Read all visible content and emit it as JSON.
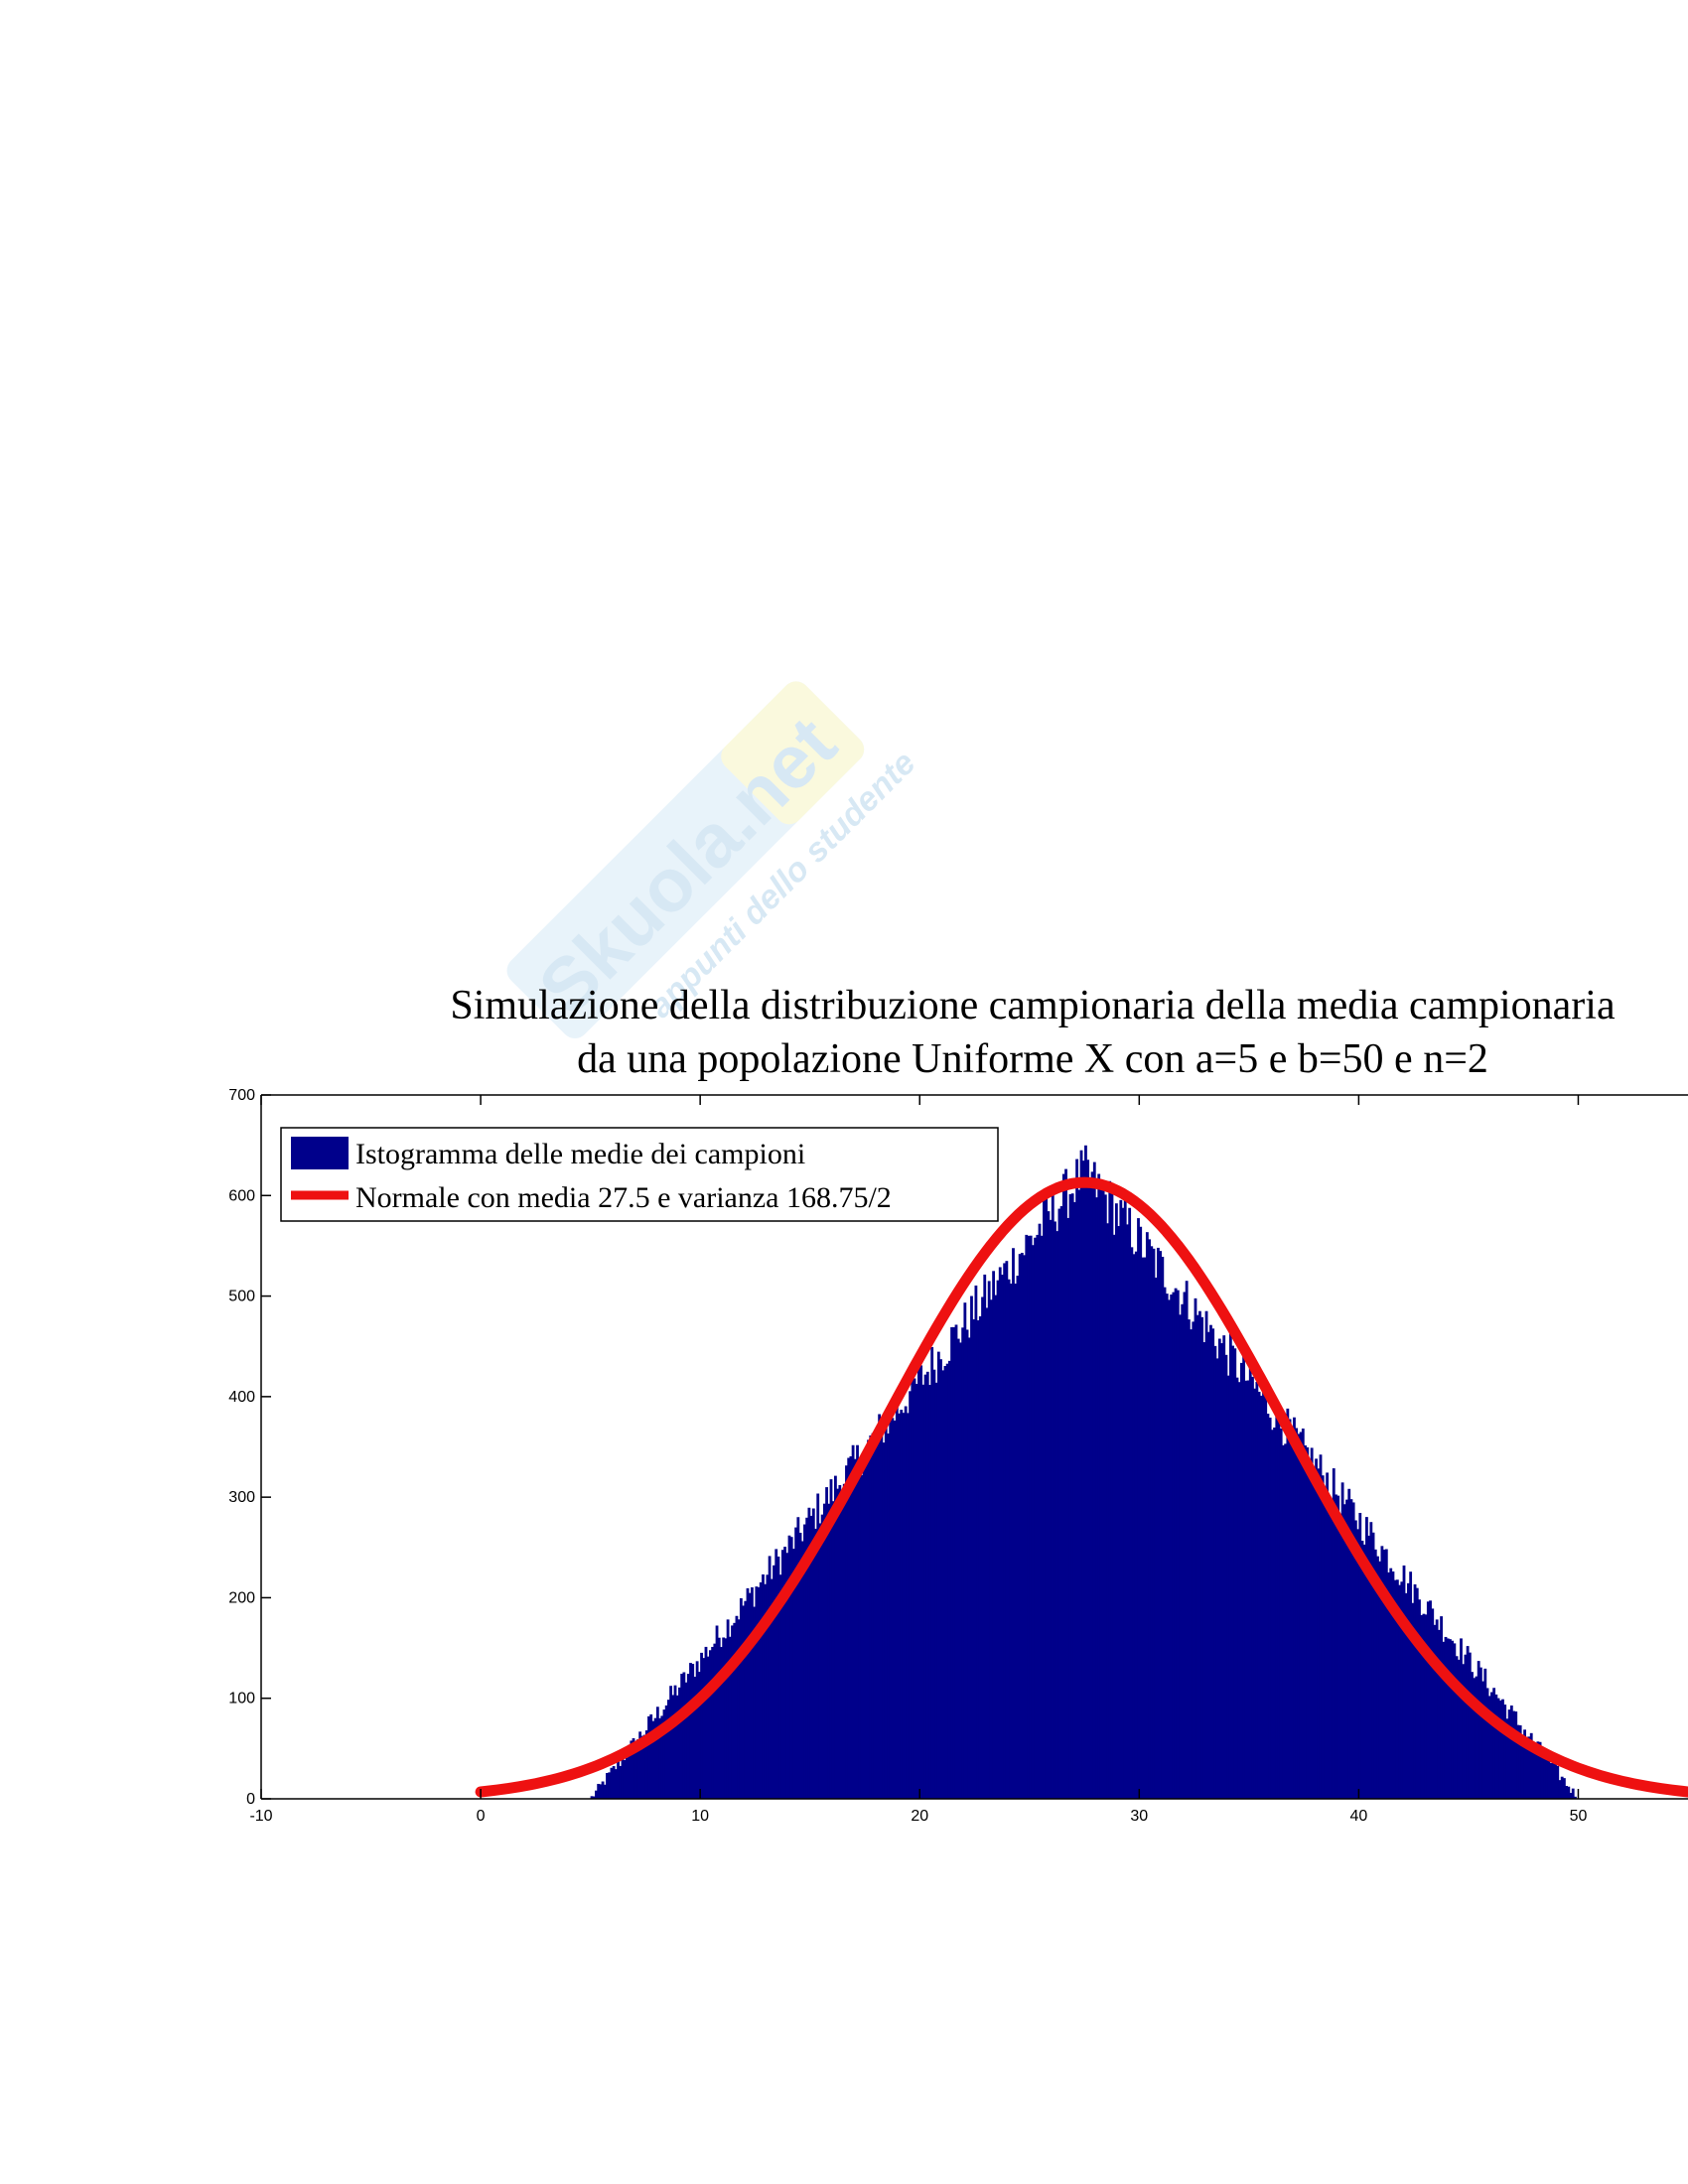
{
  "watermark": {
    "brand": "Skuola.net",
    "tagline": "appunti dello studente"
  },
  "colors": {
    "histogram": "#00008B",
    "normal_curve": "#EE1111",
    "axes": "#000000",
    "background": "#FFFFFF"
  },
  "chart_data": {
    "type": "bar",
    "subtype": "histogram with overlaid normal curve",
    "title": [
      "Simulazione della distribuzione campionaria della media campionaria",
      "da una popolazione Uniforme X con a=5 e b=50 e n=2"
    ],
    "xlabel": "",
    "ylabel": "",
    "xlim": [
      -10,
      55
    ],
    "ylim": [
      0,
      700
    ],
    "x_ticks": [
      -10,
      0,
      10,
      20,
      30,
      40,
      50
    ],
    "y_ticks": [
      0,
      100,
      200,
      300,
      400,
      500,
      600,
      700
    ],
    "grid": false,
    "legend_position": "top-left",
    "series": [
      {
        "name": "Istogramma delle medie dei campioni",
        "type": "histogram",
        "bin_range": [
          5,
          50
        ],
        "bin_width": 0.1,
        "approx_peak": 650,
        "approx_peak_at": 27.5,
        "shape": "triangular"
      },
      {
        "name": "Normale con media 27.5 e varianza 168.75/2",
        "type": "line",
        "x_range": [
          0,
          55
        ],
        "mean": 27.5,
        "variance": 84.375,
        "peak": 613
      }
    ]
  }
}
